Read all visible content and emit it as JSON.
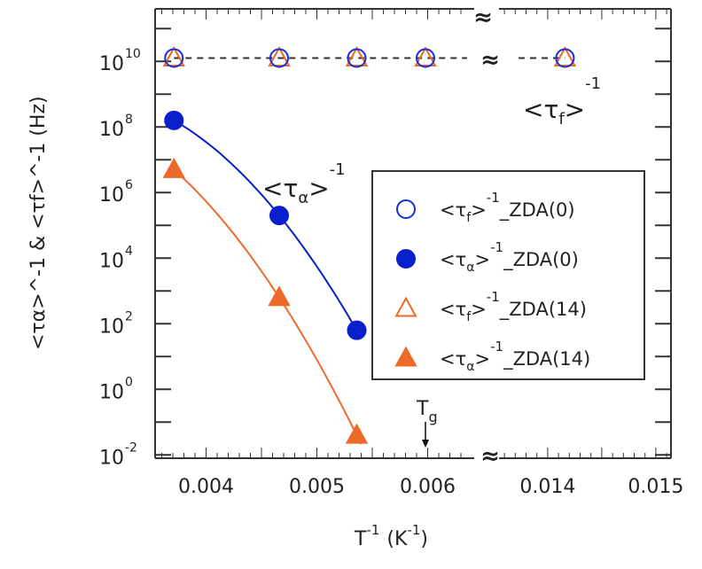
{
  "chart_data": {
    "type": "scatter",
    "title": "",
    "xlabel": "T^-1 (K^-1)",
    "xlabel_main": "T",
    "xlabel_sup": "-1",
    "xlabel_unit": "(K",
    "xlabel_unit_sup": "-1",
    "xlabel_close": ")",
    "ylabel": "<τα>^-1 & <τf>^-1 (Hz)",
    "yscale": "log",
    "ylim_log10": [
      -2.1,
      11.6
    ],
    "x_segments": [
      [
        0.00354,
        0.00642
      ],
      [
        0.01355,
        0.01514
      ]
    ],
    "x_ticks": [
      {
        "value": 0.004,
        "label": "0.004"
      },
      {
        "value": 0.005,
        "label": "0.005"
      },
      {
        "value": 0.006,
        "label": "0.006"
      },
      {
        "value": 0.014,
        "label": "0.014"
      },
      {
        "value": 0.015,
        "label": "0.015"
      }
    ],
    "y_ticks": [
      {
        "log10": 10,
        "base": "10",
        "exp": "10"
      },
      {
        "log10": 8,
        "base": "10",
        "exp": "8"
      },
      {
        "log10": 6,
        "base": "10",
        "exp": "6"
      },
      {
        "log10": 4,
        "base": "10",
        "exp": "4"
      },
      {
        "log10": 2,
        "base": "10",
        "exp": "2"
      },
      {
        "log10": 0,
        "base": "10",
        "exp": "0"
      },
      {
        "log10": -2,
        "base": "10",
        "exp": "-2"
      }
    ],
    "series": [
      {
        "name": "<τf>^-1_ZDA(0)",
        "legend_main": "<τ",
        "legend_sub": "f",
        "legend_close": ">",
        "legend_sup": "-1",
        "legend_tail": "_ZDA(0)",
        "marker": "circle-open",
        "color": "#1a2fd6",
        "x": [
          0.00371,
          0.00466,
          0.00536,
          0.00598,
          0.01416
        ],
        "log10_y": [
          10.1,
          10.1,
          10.1,
          10.1,
          10.1
        ]
      },
      {
        "name": "<τα>^-1_ZDA(0)",
        "legend_main": "<τ",
        "legend_sub": "α",
        "legend_close": ">",
        "legend_sup": "-1",
        "legend_tail": "_ZDA(0)",
        "marker": "circle-filled",
        "color": "#0a1fcc",
        "x": [
          0.00371,
          0.00466,
          0.00536
        ],
        "log10_y": [
          8.2,
          5.3,
          1.8
        ]
      },
      {
        "name": "<τf>^-1_ZDA(14)",
        "legend_main": "<τ",
        "legend_sub": "f",
        "legend_close": ">",
        "legend_sup": "-1",
        "legend_tail": "_ZDA(14)",
        "marker": "triangle-open",
        "color": "#ee6a2a",
        "x": [
          0.00371,
          0.00466,
          0.00536,
          0.00598,
          0.01416
        ],
        "log10_y": [
          10.1,
          10.1,
          10.1,
          10.1,
          10.1
        ]
      },
      {
        "name": "<τα>^-1_ZDA(14)",
        "legend_main": "<τ",
        "legend_sub": "α",
        "legend_close": ">",
        "legend_sup": "-1",
        "legend_tail": "_ZDA(14)",
        "marker": "triangle-filled",
        "color": "#ee6a2a",
        "x": [
          0.00371,
          0.00466,
          0.00536
        ],
        "log10_y": [
          6.7,
          2.8,
          -1.4
        ]
      }
    ],
    "annotations": {
      "tau_alpha": {
        "main": "<τ",
        "sub": "α",
        "close": ">",
        "sup": "-1"
      },
      "tau_f": {
        "main": "<τ",
        "sub": "f",
        "close": ">",
        "sup": "-1"
      },
      "tg": {
        "main": "T",
        "sub": "g",
        "x": 0.00598
      }
    },
    "legend_position": "center-right",
    "grid": false
  }
}
